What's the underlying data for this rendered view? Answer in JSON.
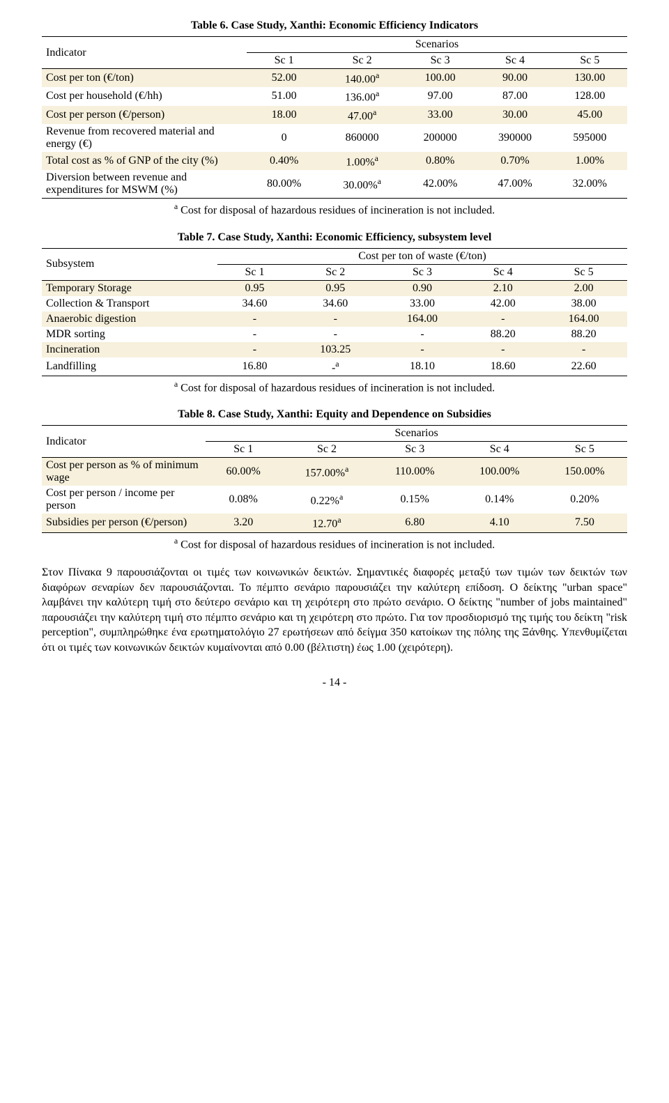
{
  "table6": {
    "title": "Table 6. Case Study, Xanthi: Economic Efficiency Indicators",
    "indicator_header": "Indicator",
    "scenarios_header": "Scenarios",
    "cols": [
      "Sc 1",
      "Sc 2",
      "Sc 3",
      "Sc 4",
      "Sc 5"
    ],
    "rows": [
      {
        "label": "Cost per ton (€/ton)",
        "vals": [
          "52.00",
          "140.00ᵃ",
          "100.00",
          "90.00",
          "130.00"
        ],
        "hl": true
      },
      {
        "label": "Cost per household (€/hh)",
        "vals": [
          "51.00",
          "136.00ᵃ",
          "97.00",
          "87.00",
          "128.00"
        ],
        "hl": false
      },
      {
        "label": "Cost per person (€/person)",
        "vals": [
          "18.00",
          "47.00ᵃ",
          "33.00",
          "30.00",
          "45.00"
        ],
        "hl": true
      },
      {
        "label": "Revenue from recovered material and energy (€)",
        "vals": [
          "0",
          "860000",
          "200000",
          "390000",
          "595000"
        ],
        "hl": false
      },
      {
        "label": "Total cost as % of GNP of the city (%)",
        "vals": [
          "0.40%",
          "1.00%ᵃ",
          "0.80%",
          "0.70%",
          "1.00%"
        ],
        "hl": true
      },
      {
        "label": "Diversion between revenue and expenditures for MSWM (%)",
        "vals": [
          "80.00%",
          "30.00%ᵃ",
          "42.00%",
          "47.00%",
          "32.00%"
        ],
        "hl": false
      }
    ],
    "footnote": "ᵃ Cost for disposal of hazardous residues of incineration is not included."
  },
  "table7": {
    "title": "Table 7. Case Study, Xanthi: Economic Efficiency, subsystem level",
    "subsystem_header": "Subsystem",
    "cost_header": "Cost per ton of waste (€/ton)",
    "cols": [
      "Sc 1",
      "Sc 2",
      "Sc 3",
      "Sc 4",
      "Sc 5"
    ],
    "rows": [
      {
        "label": "Temporary Storage",
        "vals": [
          "0.95",
          "0.95",
          "0.90",
          "2.10",
          "2.00"
        ],
        "hl": true
      },
      {
        "label": "Collection & Transport",
        "vals": [
          "34.60",
          "34.60",
          "33.00",
          "42.00",
          "38.00"
        ],
        "hl": false
      },
      {
        "label": "Anaerobic digestion",
        "vals": [
          "-",
          "-",
          "164.00",
          "-",
          "164.00"
        ],
        "hl": true
      },
      {
        "label": "MDR sorting",
        "vals": [
          "-",
          "-",
          "-",
          "88.20",
          "88.20"
        ],
        "hl": false
      },
      {
        "label": "Incineration",
        "vals": [
          "-",
          "103.25",
          "-",
          "-",
          "-"
        ],
        "hl": true
      },
      {
        "label": "Landfilling",
        "vals": [
          "16.80",
          "-ᵃ",
          "18.10",
          "18.60",
          "22.60"
        ],
        "hl": false
      }
    ],
    "footnote": "ᵃ Cost for disposal of hazardous residues of incineration is not included."
  },
  "table8": {
    "title": "Table 8. Case Study, Xanthi: Equity and Dependence on Subsidies",
    "indicator_header": "Indicator",
    "scenarios_header": "Scenarios",
    "cols": [
      "Sc 1",
      "Sc 2",
      "Sc 3",
      "Sc 4",
      "Sc 5"
    ],
    "rows": [
      {
        "label": "Cost per person as % of minimum wage",
        "vals": [
          "60.00%",
          "157.00%ᵃ",
          "110.00%",
          "100.00%",
          "150.00%"
        ],
        "hl": true
      },
      {
        "label": "Cost per person / income per person",
        "vals": [
          "0.08%",
          "0.22%ᵃ",
          "0.15%",
          "0.14%",
          "0.20%"
        ],
        "hl": false
      },
      {
        "label": "Subsidies per person (€/person)",
        "vals": [
          "3.20",
          "12.70ᵃ",
          "6.80",
          "4.10",
          "7.50"
        ],
        "hl": true
      }
    ],
    "footnote": "ᵃ Cost for disposal of hazardous residues of incineration is not included."
  },
  "paragraph": "Στον Πίνακα 9 παρουσιάζονται οι τιμές των κοινωνικών δεικτών. Σημαντικές διαφορές μεταξύ των τιμών των δεικτών των διαφόρων σεναρίων δεν παρουσιάζονται. Το πέμπτο σενάριο παρουσιάζει την καλύτερη επίδοση. Ο δείκτης \"urban space\" λαμβάνει την καλύτερη τιμή στο δεύτερο σενάριο και τη χειρότερη στο πρώτο σενάριο. Ο δείκτης \"number of jobs maintained\" παρουσιάζει την καλύτερη τιμή στο πέμπτο σενάριο και τη χειρότερη στο πρώτο. Για τον προσδιορισμό της τιμής του δείκτη \"risk perception\", συμπληρώθηκε ένα ερωτηματολόγιο 27 ερωτήσεων από δείγμα 350 κατοίκων της πόλης της Ξάνθης. Υπενθυμίζεται ότι οι τιμές των κοινωνικών δεικτών κυμαίνονται από 0.00 (βέλτιστη) έως 1.00 (χειρότερη).",
  "page_number": "- 14 -",
  "style": {
    "highlight_bg": "#f6f0dc",
    "text_color": "#000000",
    "font_family": "Times New Roman"
  }
}
